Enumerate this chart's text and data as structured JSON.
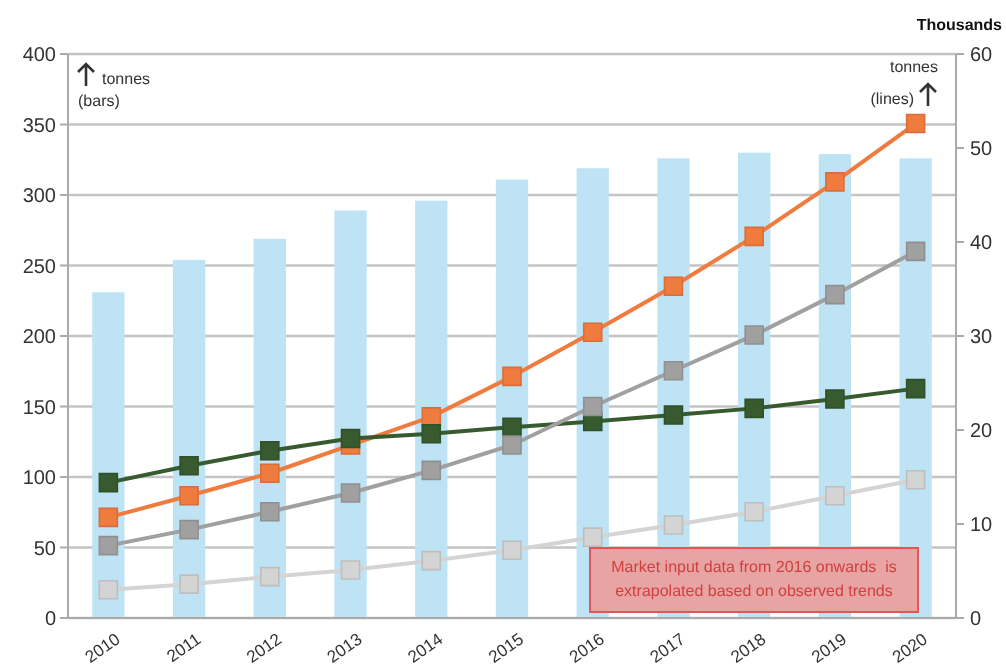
{
  "chart_data": {
    "type": "bar",
    "categories": [
      "2010",
      "2011",
      "2012",
      "2013",
      "2014",
      "2015",
      "2016",
      "2017",
      "2018",
      "2019",
      "2020"
    ],
    "ylabel": "tonnes (bars)",
    "y2label": "tonnes (lines)",
    "ylim": [
      0,
      400
    ],
    "yticks": [
      0,
      50,
      100,
      150,
      200,
      250,
      300,
      350,
      400
    ],
    "y2lim": [
      0,
      60
    ],
    "y2ticks": [
      0,
      10,
      20,
      30,
      40,
      50,
      60
    ],
    "grid": "y",
    "marker": "square",
    "line_style": "solid",
    "series": [
      {
        "color": "#bde3f5",
        "values": [
          231,
          254,
          269,
          289,
          296,
          311,
          319,
          326,
          330,
          329,
          326
        ]
      },
      {
        "type": "line",
        "axis": "y2",
        "color": "#f07b3f",
        "values": [
          10.7,
          13.0,
          15.4,
          18.4,
          21.4,
          25.7,
          30.4,
          35.3,
          40.6,
          46.4,
          52.6
        ]
      },
      {
        "type": "line",
        "axis": "y2",
        "color": "#375a2f",
        "values": [
          14.4,
          16.2,
          17.8,
          19.1,
          19.6,
          20.3,
          20.9,
          21.6,
          22.3,
          23.3,
          24.4
        ]
      },
      {
        "type": "line",
        "axis": "y2",
        "color": "#a0a0a0",
        "values": [
          7.7,
          9.4,
          11.3,
          13.3,
          15.7,
          18.4,
          22.5,
          26.3,
          30.1,
          34.4,
          39.0
        ]
      },
      {
        "type": "line",
        "axis": "y2",
        "color": "#d4d4d4",
        "values": [
          3.0,
          3.6,
          4.4,
          5.1,
          6.1,
          7.2,
          8.6,
          9.9,
          11.3,
          13.0,
          14.7
        ]
      }
    ],
    "annotations": [
      "Thousands",
      "Market input data from 2016 onwards  is extrapolated based on observed trends"
    ]
  }
}
